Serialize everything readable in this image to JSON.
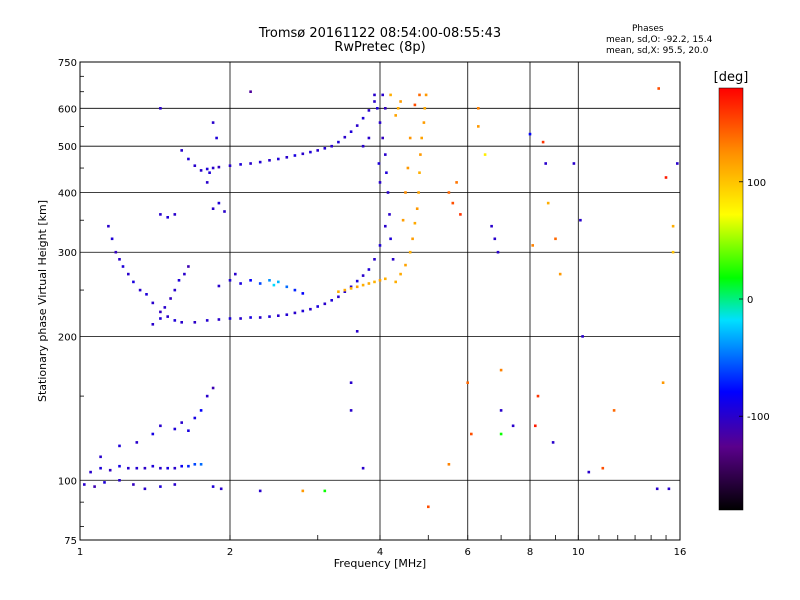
{
  "title_line1": "Tromsø 20161122 08:54:00-08:55:43",
  "title_line2": "RwPretec (8p)",
  "stats": {
    "header": "Phases",
    "line_o": "mean, sd,O: -92.2, 15.4",
    "line_x": "mean, sd,X:  95.5, 20.0"
  },
  "colorbar": {
    "label": "[deg]",
    "range": [
      -180,
      180
    ],
    "ticks": [
      {
        "value": 100,
        "label": "100"
      },
      {
        "value": 0,
        "label": "0"
      },
      {
        "value": -100,
        "label": "-100"
      }
    ]
  },
  "chart_data": {
    "type": "scatter",
    "title": "Tromsø 20161122 08:54:00-08:55:43",
    "subtitle": "RwPretec (8p)",
    "xlabel": "Frequency [MHz]",
    "ylabel": "Stationary phase Virtual Height [km]",
    "x_scale": "log",
    "y_scale": "log",
    "xlim": [
      1,
      16
    ],
    "ylim": [
      75,
      750
    ],
    "x_ticks": [
      {
        "value": 1,
        "label": "1"
      },
      {
        "value": 2,
        "label": "2"
      },
      {
        "value": 4,
        "label": "4"
      },
      {
        "value": 6,
        "label": "6"
      },
      {
        "value": 8,
        "label": "8"
      },
      {
        "value": 10,
        "label": "10"
      },
      {
        "value": 16,
        "label": "16"
      }
    ],
    "y_ticks": [
      {
        "value": 75,
        "label": "75"
      },
      {
        "value": 100,
        "label": "100"
      },
      {
        "value": 200,
        "label": "200"
      },
      {
        "value": 300,
        "label": "300"
      },
      {
        "value": 400,
        "label": "400"
      },
      {
        "value": 500,
        "label": "500"
      },
      {
        "value": 600,
        "label": "600"
      },
      {
        "value": 750,
        "label": "750"
      }
    ],
    "grid": true,
    "color_axis": "phase [deg]",
    "series": [
      {
        "name": "",
        "points": [
          [
            1.05,
            104,
            -100
          ],
          [
            1.1,
            106,
            -95
          ],
          [
            1.15,
            105,
            -105
          ],
          [
            1.2,
            107,
            -90
          ],
          [
            1.25,
            106,
            -100
          ],
          [
            1.3,
            106,
            -98
          ],
          [
            1.35,
            106,
            -102
          ],
          [
            1.4,
            107,
            -95
          ],
          [
            1.45,
            106,
            -100
          ],
          [
            1.5,
            106,
            -92
          ],
          [
            1.55,
            106,
            -100
          ],
          [
            1.6,
            107,
            -85
          ],
          [
            1.65,
            107,
            -70
          ],
          [
            1.7,
            108,
            -60
          ],
          [
            1.75,
            108,
            -50
          ],
          [
            1.02,
            98,
            -100
          ],
          [
            1.07,
            97,
            -110
          ],
          [
            1.12,
            99,
            -95
          ],
          [
            1.2,
            100,
            -100
          ],
          [
            1.28,
            98,
            -105
          ],
          [
            1.35,
            96,
            -100
          ],
          [
            1.45,
            97,
            -95
          ],
          [
            1.55,
            98,
            -100
          ],
          [
            1.85,
            97,
            -95
          ],
          [
            1.92,
            96,
            -100
          ],
          [
            1.1,
            112,
            -100
          ],
          [
            1.2,
            118,
            -95
          ],
          [
            1.3,
            120,
            -100
          ],
          [
            1.4,
            125,
            -90
          ],
          [
            1.45,
            130,
            -100
          ],
          [
            1.55,
            128,
            -95
          ],
          [
            1.6,
            132,
            -100
          ],
          [
            1.65,
            127,
            -92
          ],
          [
            1.75,
            140,
            -80
          ],
          [
            1.8,
            150,
            -100
          ],
          [
            1.85,
            156,
            -110
          ],
          [
            1.7,
            135,
            -90
          ],
          [
            1.14,
            340,
            -100
          ],
          [
            1.16,
            320,
            -95
          ],
          [
            1.18,
            300,
            -105
          ],
          [
            1.2,
            290,
            -100
          ],
          [
            1.22,
            280,
            -95
          ],
          [
            1.25,
            270,
            -100
          ],
          [
            1.28,
            260,
            -92
          ],
          [
            1.32,
            250,
            -100
          ],
          [
            1.36,
            245,
            -95
          ],
          [
            1.4,
            235,
            -100
          ],
          [
            1.45,
            225,
            -105
          ],
          [
            1.5,
            220,
            -100
          ],
          [
            1.55,
            216,
            -95
          ],
          [
            1.6,
            214,
            -100
          ],
          [
            1.7,
            214,
            -102
          ],
          [
            1.8,
            216,
            -98
          ],
          [
            1.9,
            217,
            -100
          ],
          [
            2.0,
            218,
            -95
          ],
          [
            2.1,
            218,
            -100
          ],
          [
            2.2,
            219,
            -92
          ],
          [
            2.3,
            219,
            -100
          ],
          [
            2.4,
            220,
            -95
          ],
          [
            2.5,
            221,
            -100
          ],
          [
            2.6,
            222,
            -97
          ],
          [
            2.7,
            224,
            -100
          ],
          [
            2.8,
            226,
            -95
          ],
          [
            2.9,
            228,
            -100
          ],
          [
            3.0,
            231,
            -92
          ],
          [
            3.1,
            234,
            -100
          ],
          [
            3.2,
            238,
            -95
          ],
          [
            3.3,
            242,
            -100
          ],
          [
            3.4,
            248,
            -97
          ],
          [
            3.5,
            254,
            -100
          ],
          [
            3.6,
            261,
            -95
          ],
          [
            3.7,
            268,
            -100
          ],
          [
            3.8,
            276,
            -95
          ],
          [
            3.9,
            290,
            -100
          ],
          [
            4.0,
            310,
            -95
          ],
          [
            4.1,
            340,
            -100
          ],
          [
            1.4,
            212,
            -100
          ],
          [
            1.45,
            218,
            -95
          ],
          [
            1.48,
            230,
            -100
          ],
          [
            1.52,
            240,
            -105
          ],
          [
            1.55,
            250,
            -100
          ],
          [
            1.58,
            262,
            -95
          ],
          [
            1.62,
            270,
            -100
          ],
          [
            1.65,
            280,
            -110
          ],
          [
            1.9,
            255,
            -100
          ],
          [
            2.0,
            262,
            -95
          ],
          [
            2.05,
            270,
            -100
          ],
          [
            2.1,
            258,
            -92
          ],
          [
            2.2,
            262,
            -80
          ],
          [
            2.3,
            258,
            -60
          ],
          [
            2.4,
            262,
            -40
          ],
          [
            2.45,
            256,
            -20
          ],
          [
            2.5,
            260,
            -30
          ],
          [
            2.6,
            254,
            -50
          ],
          [
            2.7,
            250,
            -70
          ],
          [
            2.8,
            246,
            -80
          ],
          [
            1.6,
            490,
            -100
          ],
          [
            1.65,
            470,
            -95
          ],
          [
            1.7,
            455,
            -100
          ],
          [
            1.75,
            445,
            -100
          ],
          [
            1.8,
            448,
            -95
          ],
          [
            1.85,
            450,
            -100
          ],
          [
            1.9,
            452,
            -105
          ],
          [
            2.0,
            455,
            -100
          ],
          [
            2.1,
            458,
            -95
          ],
          [
            2.2,
            460,
            -100
          ],
          [
            2.3,
            463,
            -97
          ],
          [
            2.4,
            467,
            -100
          ],
          [
            2.5,
            470,
            -95
          ],
          [
            2.6,
            474,
            -100
          ],
          [
            2.7,
            478,
            -92
          ],
          [
            2.8,
            482,
            -100
          ],
          [
            2.9,
            486,
            -95
          ],
          [
            3.0,
            490,
            -100
          ],
          [
            3.1,
            495,
            -97
          ],
          [
            3.2,
            500,
            -100
          ],
          [
            3.3,
            510,
            -95
          ],
          [
            3.4,
            522,
            -100
          ],
          [
            3.5,
            536,
            -95
          ],
          [
            3.6,
            552,
            -100
          ],
          [
            3.7,
            572,
            -95
          ],
          [
            3.8,
            594,
            -100
          ],
          [
            3.9,
            620,
            -100
          ],
          [
            1.45,
            360,
            -100
          ],
          [
            1.5,
            355,
            -95
          ],
          [
            1.55,
            360,
            -100
          ],
          [
            1.85,
            370,
            -100
          ],
          [
            1.9,
            380,
            -95
          ],
          [
            1.95,
            365,
            -100
          ],
          [
            1.8,
            420,
            -100
          ],
          [
            1.82,
            440,
            -95
          ],
          [
            1.45,
            600,
            -100
          ],
          [
            1.85,
            560,
            -100
          ],
          [
            1.88,
            520,
            -95
          ],
          [
            3.9,
            640,
            -100
          ],
          [
            3.95,
            600,
            -95
          ],
          [
            4.0,
            560,
            -100
          ],
          [
            4.05,
            520,
            -105
          ],
          [
            4.1,
            480,
            -100
          ],
          [
            4.12,
            440,
            -95
          ],
          [
            4.15,
            400,
            -100
          ],
          [
            4.18,
            360,
            -100
          ],
          [
            4.2,
            320,
            -95
          ],
          [
            4.25,
            290,
            -100
          ],
          [
            4.0,
            420,
            -100
          ],
          [
            3.98,
            460,
            -95
          ],
          [
            4.05,
            640,
            -100
          ],
          [
            4.1,
            600,
            -105
          ],
          [
            4.3,
            260,
            110
          ],
          [
            4.4,
            270,
            112
          ],
          [
            4.5,
            282,
            115
          ],
          [
            4.6,
            300,
            110
          ],
          [
            4.65,
            320,
            118
          ],
          [
            4.7,
            345,
            112
          ],
          [
            4.75,
            370,
            120
          ],
          [
            4.78,
            400,
            115
          ],
          [
            4.8,
            440,
            110
          ],
          [
            4.82,
            480,
            120
          ],
          [
            4.85,
            520,
            115
          ],
          [
            4.9,
            560,
            118
          ],
          [
            4.92,
            600,
            112
          ],
          [
            4.95,
            640,
            120
          ],
          [
            3.3,
            248,
            110
          ],
          [
            3.4,
            250,
            112
          ],
          [
            3.5,
            252,
            108
          ],
          [
            3.6,
            254,
            115
          ],
          [
            3.7,
            256,
            110
          ],
          [
            3.8,
            258,
            112
          ],
          [
            3.9,
            260,
            108
          ],
          [
            4.0,
            262,
            115
          ],
          [
            4.1,
            264,
            110
          ],
          [
            4.5,
            400,
            125
          ],
          [
            4.55,
            450,
            120
          ],
          [
            4.45,
            350,
            118
          ],
          [
            4.6,
            520,
            122
          ],
          [
            4.35,
            600,
            112
          ],
          [
            4.3,
            580,
            115
          ],
          [
            4.4,
            620,
            118
          ],
          [
            4.2,
            640,
            110
          ],
          [
            4.8,
            640,
            140
          ],
          [
            4.7,
            610,
            150
          ],
          [
            5.5,
            400,
            140
          ],
          [
            5.6,
            380,
            150
          ],
          [
            5.8,
            360,
            160
          ],
          [
            5.7,
            420,
            135
          ],
          [
            2.2,
            650,
            -120
          ],
          [
            6.0,
            160,
            140
          ],
          [
            6.1,
            125,
            150
          ],
          [
            6.3,
            600,
            130
          ],
          [
            6.3,
            550,
            120
          ],
          [
            6.5,
            480,
            80
          ],
          [
            6.7,
            340,
            -100
          ],
          [
            6.8,
            320,
            -100
          ],
          [
            6.9,
            300,
            -100
          ],
          [
            7.0,
            170,
            130
          ],
          [
            7.0,
            140,
            -100
          ],
          [
            7.0,
            125,
            20
          ],
          [
            7.4,
            130,
            -100
          ],
          [
            8.0,
            530,
            -80
          ],
          [
            8.1,
            310,
            130
          ],
          [
            8.2,
            130,
            170
          ],
          [
            8.3,
            150,
            160
          ],
          [
            8.5,
            510,
            160
          ],
          [
            8.6,
            460,
            -100
          ],
          [
            8.7,
            380,
            110
          ],
          [
            8.9,
            120,
            -100
          ],
          [
            9.0,
            320,
            140
          ],
          [
            9.2,
            270,
            120
          ],
          [
            9.8,
            460,
            -100
          ],
          [
            10.1,
            350,
            -100
          ],
          [
            10.2,
            200,
            -100
          ],
          [
            10.5,
            104,
            -100
          ],
          [
            11.2,
            106,
            150
          ],
          [
            11.8,
            140,
            140
          ],
          [
            14.5,
            660,
            150
          ],
          [
            14.8,
            160,
            120
          ],
          [
            15.0,
            430,
            170
          ],
          [
            15.5,
            340,
            110
          ],
          [
            15.5,
            300,
            100
          ],
          [
            15.8,
            460,
            -100
          ],
          [
            14.4,
            96,
            -100
          ],
          [
            15.2,
            96,
            -100
          ],
          [
            3.5,
            140,
            -100
          ],
          [
            3.7,
            106,
            -100
          ],
          [
            3.5,
            160,
            -100
          ],
          [
            2.3,
            95,
            -100
          ],
          [
            2.8,
            95,
            120
          ],
          [
            3.1,
            95,
            20
          ],
          [
            3.6,
            205,
            -100
          ],
          [
            3.7,
            500,
            -100
          ],
          [
            3.8,
            520,
            -100
          ],
          [
            5.5,
            108,
            130
          ],
          [
            5.0,
            88,
            150
          ]
        ]
      }
    ]
  }
}
